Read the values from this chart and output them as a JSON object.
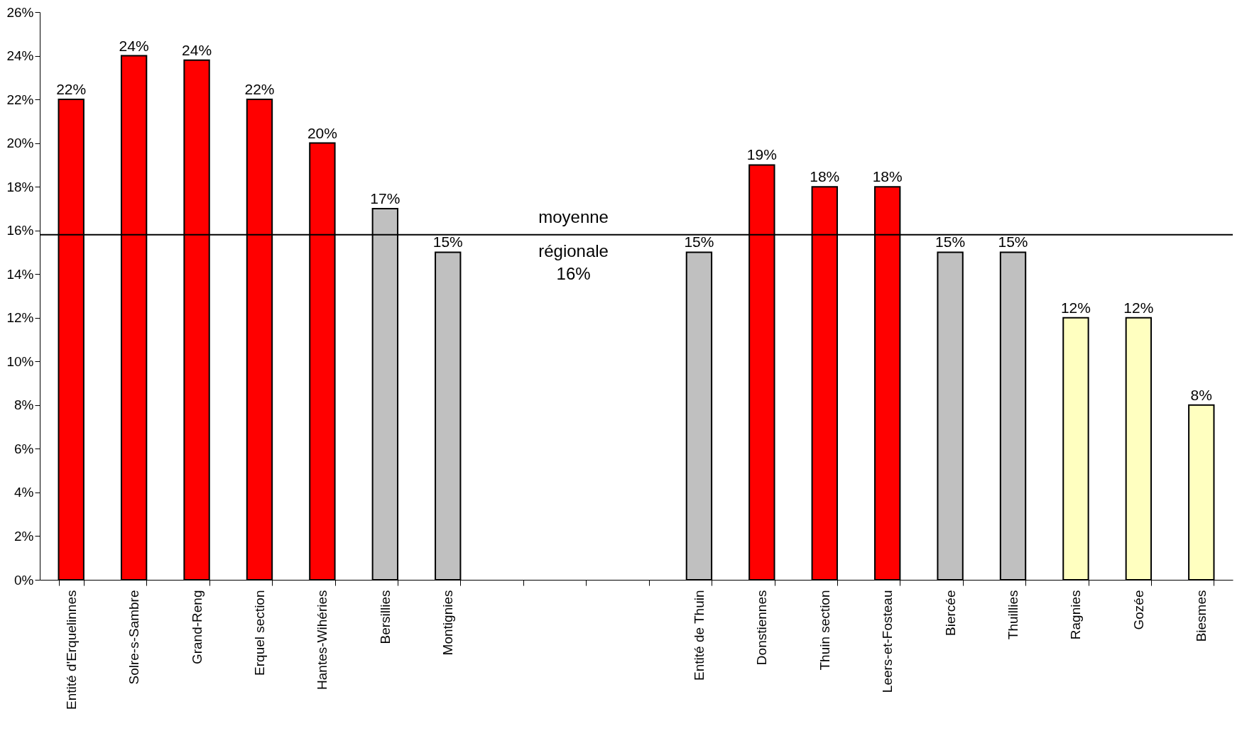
{
  "chart_data": {
    "type": "bar",
    "categories": [
      "Entité d'Erquelinnes",
      "Solre-s-Sambre",
      "Grand-Reng",
      "Erquel section",
      "Hantes-Wihéries",
      "Bersillies",
      "Montignies",
      null,
      null,
      null,
      "Entité de Thuin",
      "Donstiennes",
      "Thuin section",
      "Leers-et-Fosteau",
      "Biercée",
      "Thuillies",
      "Ragnies",
      "Gozée",
      "Biesmes"
    ],
    "values": [
      22,
      24,
      23.8,
      22,
      20,
      17,
      15,
      null,
      null,
      null,
      15,
      19,
      18,
      18,
      15,
      15,
      12,
      12,
      8
    ],
    "value_labels": [
      "22%",
      "24%",
      "24%",
      "22%",
      "20%",
      "17%",
      "15%",
      null,
      null,
      null,
      "15%",
      "19%",
      "18%",
      "18%",
      "15%",
      "15%",
      "12%",
      "12%",
      "8%"
    ],
    "colors": [
      "#ff0000",
      "#ff0000",
      "#ff0000",
      "#ff0000",
      "#ff0000",
      "#c0c0c0",
      "#c0c0c0",
      null,
      null,
      null,
      "#c0c0c0",
      "#ff0000",
      "#ff0000",
      "#ff0000",
      "#c0c0c0",
      "#c0c0c0",
      "#ffffc0",
      "#ffffc0",
      "#ffffc0"
    ],
    "ylim": [
      0,
      26
    ],
    "yticks": [
      {
        "value": 0,
        "label": "0%"
      },
      {
        "value": 2,
        "label": "2%"
      },
      {
        "value": 4,
        "label": "4%"
      },
      {
        "value": 6,
        "label": "6%"
      },
      {
        "value": 8,
        "label": "8%"
      },
      {
        "value": 10,
        "label": "10%"
      },
      {
        "value": 12,
        "label": "12%"
      },
      {
        "value": 14,
        "label": "14%"
      },
      {
        "value": 16,
        "label": "16%"
      },
      {
        "value": 18,
        "label": "18%"
      },
      {
        "value": 20,
        "label": "20%"
      },
      {
        "value": 22,
        "label": "22%"
      },
      {
        "value": 24,
        "label": "24%"
      },
      {
        "value": 26,
        "label": "26%"
      }
    ],
    "ref_lines": [
      {
        "axis": "y",
        "value": 15.8,
        "label": "moyenne régionale 16%",
        "color": "#000000"
      }
    ],
    "grid": false
  }
}
